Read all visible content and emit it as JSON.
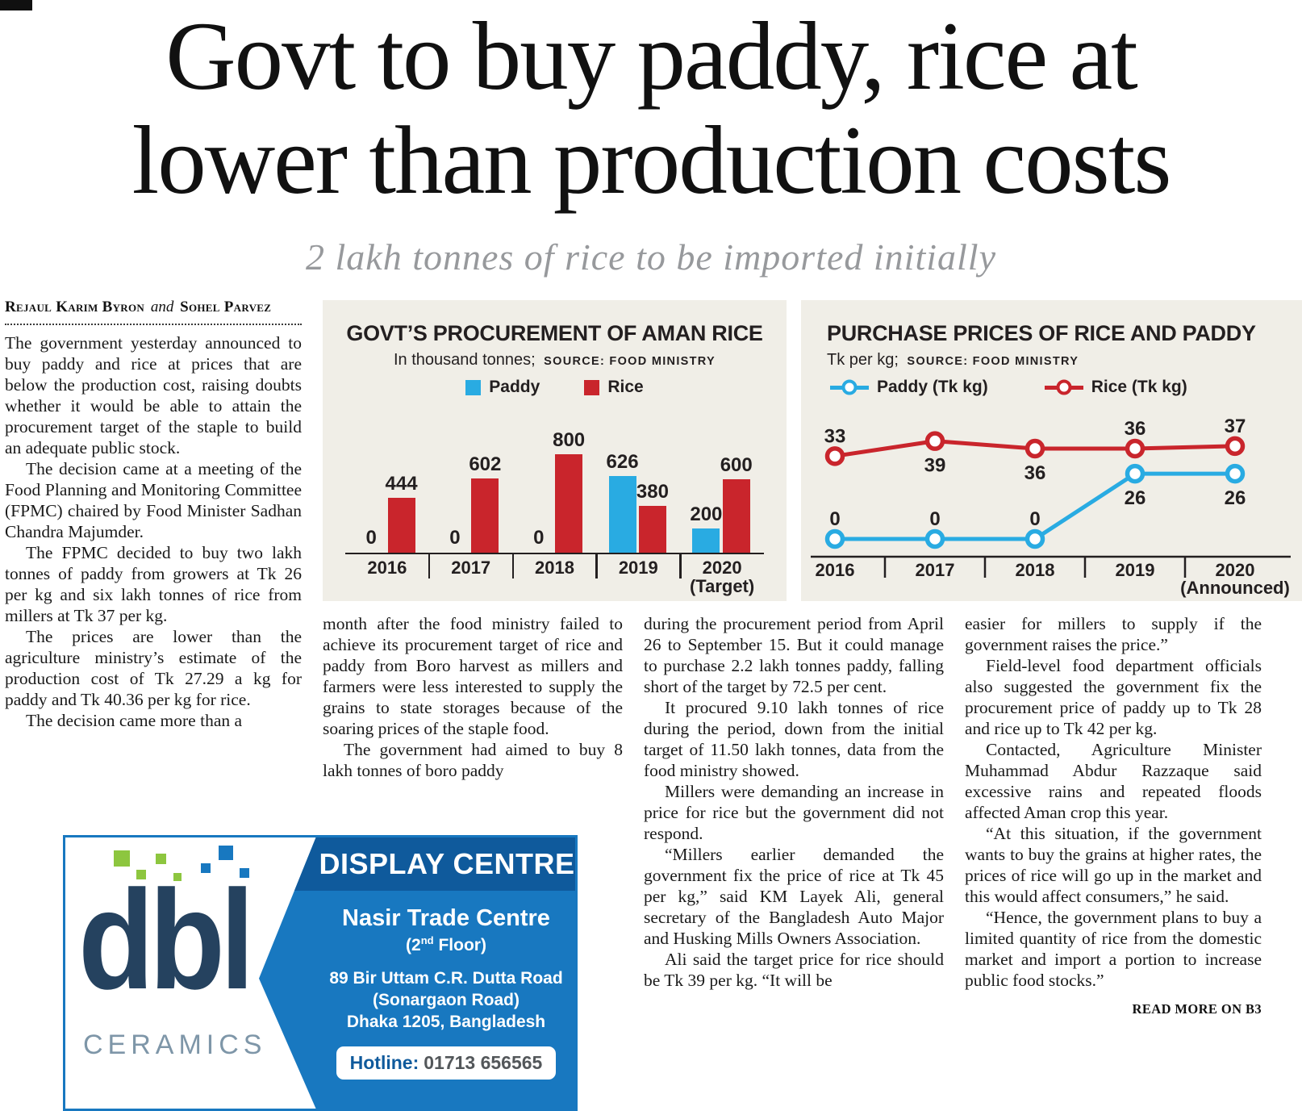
{
  "masthead": {
    "headline_line1": "Govt to buy paddy, rice at",
    "headline_line2": "lower than production costs",
    "subheadline": "2 lakh tonnes of rice to be imported initially"
  },
  "byline": {
    "author1": "Rejaul Karim Byron",
    "connector": "and",
    "author2": "Sohel Parvez"
  },
  "article": {
    "col1": [
      "The government yesterday announced to buy paddy and rice at prices that are below the production cost, raising doubts whether it would be able to attain the procurement target of the staple to build an adequate public stock.",
      "The decision came at a meeting of the Food Planning and Monitoring Committee (FPMC) chaired by Food Minister Sadhan Chandra Majumder.",
      "The FPMC decided to buy two lakh tonnes of paddy from growers at Tk 26 per kg and six lakh tonnes of rice from millers at Tk 37 per kg.",
      "The prices are lower than the agriculture ministry’s estimate of the production cost of Tk 27.29 a kg for paddy and Tk 40.36 per kg for rice.",
      "The decision came more than a"
    ],
    "col2": [
      "month after the food ministry failed to achieve its procurement target of rice and paddy from Boro harvest as millers and farmers were less interested to supply the grains to state storages because of the soaring prices of the staple food.",
      "The government had aimed to buy 8 lakh tonnes of boro paddy"
    ],
    "col3": [
      "during the procurement period from April 26 to September 15. But it could manage to purchase 2.2 lakh tonnes paddy, falling short of the target by 72.5 per cent.",
      "It procured 9.10 lakh tonnes of rice during the period, down from the initial target of 11.50 lakh tonnes, data from the food ministry showed.",
      "Millers were demanding an increase in price for rice but the government did not respond.",
      "“Millers earlier demanded the government fix the price of rice at Tk 45 per kg,” said KM Layek Ali, general secretary of the Bangladesh Auto Major and Husking Mills Owners Association.",
      "Ali said the target price for rice should be Tk 39 per kg. “It will be"
    ],
    "col4": [
      "easier for millers to supply if the government raises the price.”",
      "Field-level food department officials also suggested the government fix the procurement price of paddy up to Tk 28 and rice up to Tk 42 per kg.",
      "Contacted, Agriculture Minister Muhammad Abdur Razzaque said excessive rains and repeated floods affected Aman crop this year.",
      "“At this situation, if the government wants to buy the grains at higher rates, the prices of rice will go up in the market and this would affect consumers,” he said.",
      "“Hence, the government plans to buy a limited quantity of rice from the domestic market and import a portion to increase public food stocks.”"
    ],
    "read_more": "READ MORE ON B3"
  },
  "chart_data": [
    {
      "type": "bar",
      "title": "GOVT’S PROCUREMENT OF AMAN RICE",
      "unit_label": "In thousand tonnes;",
      "source": "SOURCE: FOOD MINISTRY",
      "categories": [
        "2016",
        "2017",
        "2018",
        "2019",
        "2020 (Target)"
      ],
      "series": [
        {
          "name": "Paddy",
          "color": "#29abe2",
          "values": [
            0,
            0,
            0,
            626,
            200
          ]
        },
        {
          "name": "Rice",
          "color": "#c9252c",
          "values": [
            444,
            602,
            800,
            380,
            600
          ]
        }
      ],
      "ylim": [
        0,
        800
      ],
      "grid": false,
      "legend_position": "top"
    },
    {
      "type": "line",
      "title": "PURCHASE PRICES OF RICE AND PADDY",
      "unit_label": "Tk per kg;",
      "source": "SOURCE: FOOD MINISTRY",
      "categories": [
        "2016",
        "2017",
        "2018",
        "2019",
        "2020 (Announced)"
      ],
      "series": [
        {
          "name": "Paddy (Tk kg)",
          "color": "#29abe2",
          "values": [
            0,
            0,
            0,
            26,
            26
          ],
          "label_pos": [
            "above",
            "above",
            "above",
            "below",
            "below"
          ]
        },
        {
          "name": "Rice (Tk kg)",
          "color": "#c9252c",
          "values": [
            33,
            39,
            36,
            36,
            37
          ],
          "label_pos": [
            "above",
            "below",
            "below",
            "above",
            "above"
          ]
        }
      ],
      "ylim": [
        0,
        45
      ],
      "grid": false,
      "legend_position": "top"
    }
  ],
  "ad": {
    "logo_text": "dbl",
    "logo_sub": "CERAMICS",
    "title": "DISPLAY CENTRE",
    "line1": "Nasir Trade Centre",
    "line2_pre": "(2",
    "line2_sup": "nd",
    "line2_post": " Floor)",
    "line3": "89 Bir Uttam C.R. Dutta Road",
    "line4": "(Sonargaon Road)",
    "line5": "Dhaka 1205, Bangladesh",
    "hotline_label": "Hotline:",
    "hotline_number": "01713 656565"
  }
}
